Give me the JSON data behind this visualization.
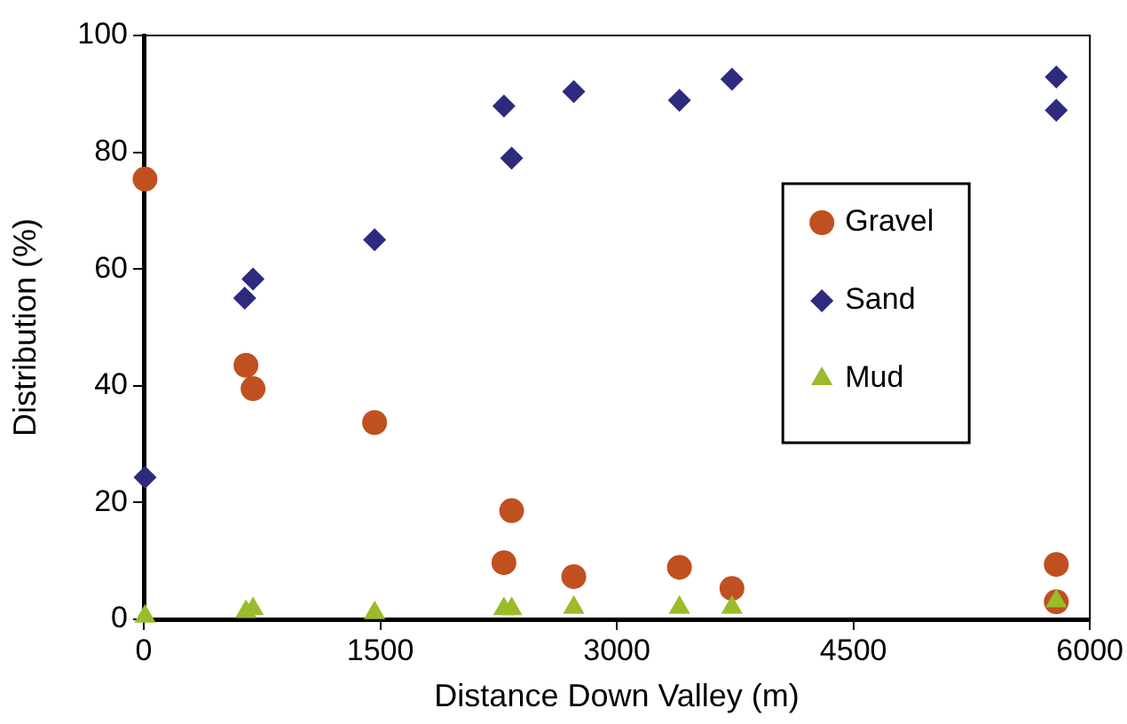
{
  "chart_data": {
    "type": "scatter",
    "xlabel": "Distance Down Valley (m)",
    "ylabel": "Distribution (%)",
    "xlim": [
      0,
      6000
    ],
    "xticks": [
      0,
      1500,
      3000,
      4500,
      6000
    ],
    "ylim": [
      0,
      100
    ],
    "yticks": [
      0,
      20,
      40,
      60,
      80,
      100
    ],
    "grid": false,
    "legend": "right",
    "series": [
      {
        "name": "Gravel",
        "color": "#c0501f",
        "marker": "circle",
        "x": [
          8,
          648,
          693,
          1464,
          2284,
          2333,
          2727,
          3397,
          3730,
          5787,
          5787
        ],
        "values": [
          75.4,
          43.5,
          39.5,
          33.7,
          9.7,
          18.6,
          7.3,
          8.9,
          5.3,
          9.4,
          3.0
        ]
      },
      {
        "name": "Sand",
        "color": "#2e2a7e",
        "marker": "diamond",
        "x": [
          8,
          640,
          693,
          1464,
          2284,
          2333,
          2727,
          3397,
          3730,
          5787,
          5787
        ],
        "values": [
          24.3,
          55.0,
          58.3,
          65.0,
          87.9,
          79.0,
          90.4,
          88.9,
          92.5,
          92.9,
          87.2
        ]
      },
      {
        "name": "Mud",
        "color": "#9bbb2a",
        "marker": "triangle",
        "x": [
          8,
          648,
          693,
          1464,
          2284,
          2333,
          2727,
          3397,
          3730,
          5787
        ],
        "values": [
          0.5,
          1.3,
          1.8,
          1.1,
          1.8,
          1.8,
          2.0,
          2.0,
          2.0,
          3.1
        ]
      }
    ]
  }
}
